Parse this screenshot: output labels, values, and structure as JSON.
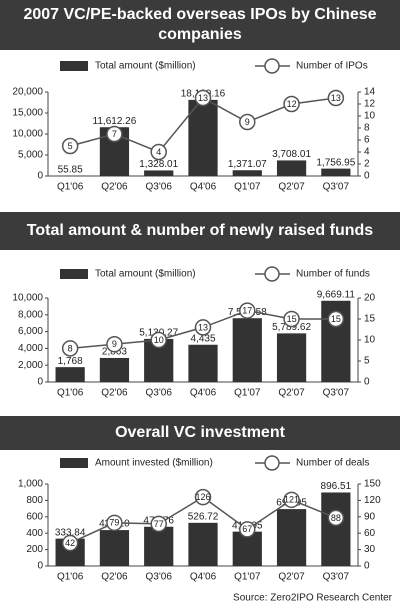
{
  "chart_data": [
    {
      "type": "bar-line",
      "title": "2007 VC/PE-backed overseas IPOs by Chinese companies",
      "categories": [
        "Q1'06",
        "Q2'06",
        "Q3'06",
        "Q4'06",
        "Q1'07",
        "Q2'07",
        "Q3'07"
      ],
      "series": [
        {
          "name": "Total amount ($million)",
          "color": "#333333",
          "values": [
            55.85,
            11612.26,
            1328.01,
            18129.16,
            1371.07,
            3708.01,
            1756.95
          ],
          "value_labels": [
            "55.85",
            "11,612.26",
            "1,328.01",
            "18,129.16",
            "1,371.07",
            "3,708.01",
            "1,756.95"
          ]
        },
        {
          "name": "Number of IPOs",
          "color": "#555555",
          "axis": "y2",
          "values": [
            5,
            7,
            4,
            13,
            9,
            12,
            13
          ]
        }
      ],
      "ylim": [
        0,
        20000
      ],
      "yticks": [
        0,
        {
          "value": 5000,
          "label": "5,000"
        },
        {
          "value": 10000,
          "label": "10,000"
        },
        {
          "value": 15000,
          "label": "15,000"
        },
        {
          "value": 20000,
          "label": "20,000"
        }
      ],
      "y2lim": [
        0,
        14
      ],
      "y2ticks": [
        0,
        2,
        4,
        6,
        8,
        10,
        12,
        14
      ]
    },
    {
      "type": "bar-line",
      "title": "Total amount & number of newly raised funds",
      "categories": [
        "Q1'06",
        "Q2'06",
        "Q3'06",
        "Q4'06",
        "Q1'07",
        "Q2'07",
        "Q3'07"
      ],
      "series": [
        {
          "name": "Total amount ($million)",
          "color": "#333333",
          "values": [
            1768,
            2863,
            5130.27,
            4435,
            7593.58,
            5789.62,
            9669.11
          ],
          "value_labels": [
            "1,768",
            "2,863",
            "5,130.27",
            "4,435",
            "7,593.58",
            "5,789.62",
            "9,669.11"
          ]
        },
        {
          "name": "Number of funds",
          "color": "#555555",
          "axis": "y2",
          "values": [
            8,
            9,
            10,
            13,
            17,
            15,
            15
          ]
        }
      ],
      "ylim": [
        0,
        10000
      ],
      "yticks": [
        0,
        {
          "value": 2000,
          "label": "2,000"
        },
        {
          "value": 4000,
          "label": "4,000"
        },
        {
          "value": 6000,
          "label": "6,000"
        },
        {
          "value": 8000,
          "label": "8,000"
        },
        {
          "value": 10000,
          "label": "10,000"
        }
      ],
      "y2lim": [
        0,
        20
      ],
      "y2ticks": [
        0,
        5,
        10,
        15,
        20
      ]
    },
    {
      "type": "bar-line",
      "title": "Overall VC investment",
      "categories": [
        "Q1'06",
        "Q2'06",
        "Q3'06",
        "Q4'06",
        "Q1'07",
        "Q2'07",
        "Q3'07"
      ],
      "series": [
        {
          "name": "Amount invested ($million)",
          "color": "#333333",
          "values": [
            333.84,
            438.1,
            478.76,
            526.72,
            418.95,
            693.95,
            896.51
          ],
          "value_labels": [
            "333.84",
            "438.10",
            "478.76",
            "526.72",
            "418.95",
            "693.95",
            "896.51"
          ]
        },
        {
          "name": "Number of deals",
          "color": "#555555",
          "axis": "y2",
          "values": [
            42,
            79,
            77,
            126,
            67,
            121,
            88
          ]
        }
      ],
      "ylim": [
        0,
        1000
      ],
      "yticks": [
        0,
        200,
        400,
        600,
        800,
        {
          "value": 1000,
          "label": "1,000"
        }
      ],
      "y2lim": [
        0,
        150
      ],
      "y2ticks": [
        0,
        30,
        60,
        90,
        120,
        150
      ]
    }
  ],
  "source": "Source: Zero2IPO Research Center"
}
